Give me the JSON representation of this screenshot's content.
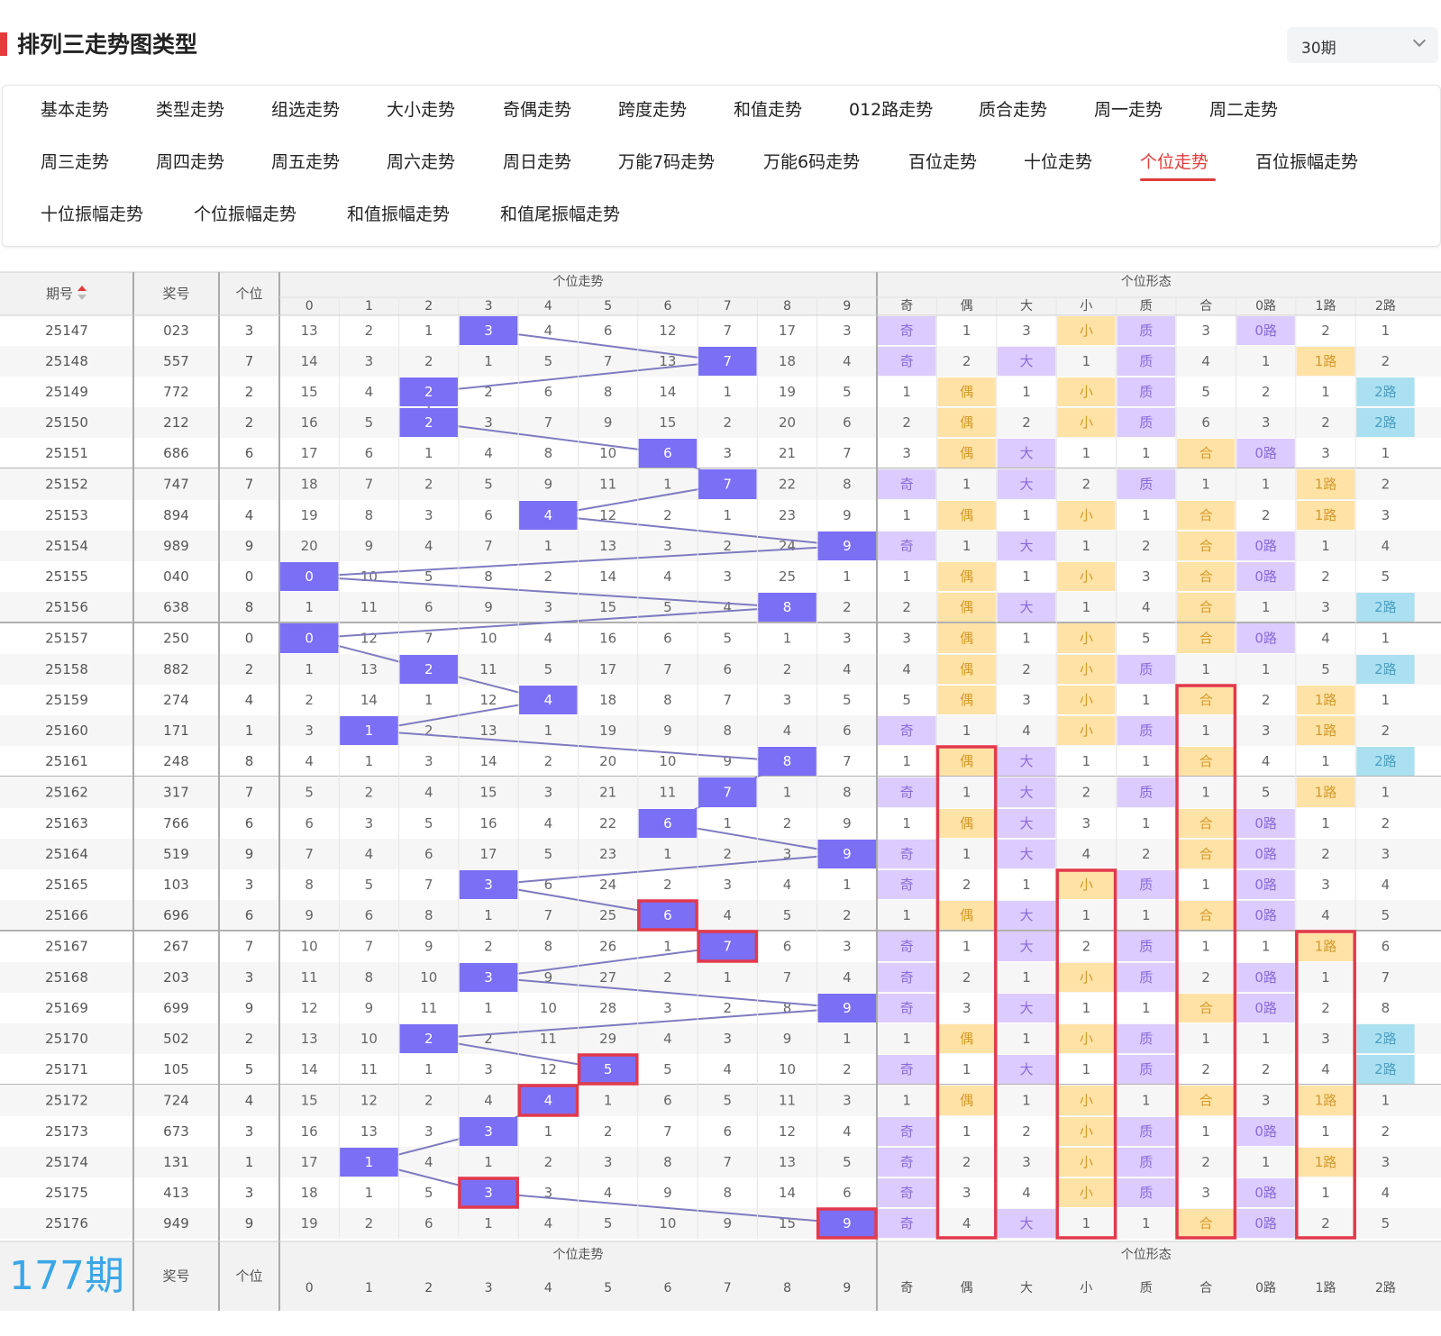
{
  "page": {
    "title": "排列三走势图类型",
    "period_select": "30期"
  },
  "tabs": [
    {
      "label": "基本走势"
    },
    {
      "label": "类型走势"
    },
    {
      "label": "组选走势"
    },
    {
      "label": "大小走势"
    },
    {
      "label": "奇偶走势"
    },
    {
      "label": "跨度走势"
    },
    {
      "label": "和值走势"
    },
    {
      "label": "012路走势"
    },
    {
      "label": "质合走势"
    },
    {
      "label": "周一走势"
    },
    {
      "label": "周二走势"
    },
    {
      "label": "周三走势"
    },
    {
      "label": "周四走势"
    },
    {
      "label": "周五走势"
    },
    {
      "label": "周六走势"
    },
    {
      "label": "周日走势"
    },
    {
      "label": "万能7码走势"
    },
    {
      "label": "万能6码走势"
    },
    {
      "label": "百位走势"
    },
    {
      "label": "十位走势"
    },
    {
      "label": "个位走势"
    },
    {
      "label": "百位振幅走势"
    },
    {
      "label": "十位振幅走势"
    },
    {
      "label": "个位振幅走势"
    },
    {
      "label": "和值振幅走势"
    },
    {
      "label": "和值尾振幅走势"
    }
  ],
  "active_tab": "个位走势",
  "table": {
    "head": {
      "issue": "期号",
      "sort_icon": "sort-arrows-icon",
      "draw": "奖号",
      "units": "个位",
      "group_trend": "个位走势",
      "group_form": "个位形态",
      "digits": [
        "0",
        "1",
        "2",
        "3",
        "4",
        "5",
        "6",
        "7",
        "8",
        "9"
      ],
      "forms": [
        "奇",
        "偶",
        "大",
        "小",
        "质",
        "合",
        "0路",
        "1路",
        "2路"
      ]
    },
    "footer": {
      "count": "177期",
      "draw": "奖号",
      "units": "个位"
    },
    "rows": [
      {
        "issue": "25147",
        "draw": "023",
        "units": "3",
        "trend": [
          "13",
          "2",
          "1",
          "3",
          "4",
          "6",
          "12",
          "7",
          "17",
          "3"
        ],
        "form": [
          "奇",
          "1",
          "3",
          "小",
          "质",
          "3",
          "0路",
          "2",
          "1"
        ]
      },
      {
        "issue": "25148",
        "draw": "557",
        "units": "7",
        "trend": [
          "14",
          "3",
          "2",
          "1",
          "5",
          "7",
          "13",
          "7",
          "18",
          "4"
        ],
        "form": [
          "奇",
          "2",
          "大",
          "1",
          "质",
          "4",
          "1",
          "1路",
          "2"
        ]
      },
      {
        "issue": "25149",
        "draw": "772",
        "units": "2",
        "trend": [
          "15",
          "4",
          "2",
          "2",
          "6",
          "8",
          "14",
          "1",
          "19",
          "5"
        ],
        "form": [
          "1",
          "偶",
          "1",
          "小",
          "质",
          "5",
          "2",
          "1",
          "2路"
        ]
      },
      {
        "issue": "25150",
        "draw": "212",
        "units": "2",
        "trend": [
          "16",
          "5",
          "2",
          "3",
          "7",
          "9",
          "15",
          "2",
          "20",
          "6"
        ],
        "form": [
          "2",
          "偶",
          "2",
          "小",
          "质",
          "6",
          "3",
          "2",
          "2路"
        ]
      },
      {
        "issue": "25151",
        "draw": "686",
        "units": "6",
        "trend": [
          "17",
          "6",
          "1",
          "4",
          "8",
          "10",
          "6",
          "3",
          "21",
          "7"
        ],
        "form": [
          "3",
          "偶",
          "大",
          "1",
          "1",
          "合",
          "0路",
          "3",
          "1"
        ]
      },
      {
        "issue": "25152",
        "draw": "747",
        "units": "7",
        "trend": [
          "18",
          "7",
          "2",
          "5",
          "9",
          "11",
          "1",
          "7",
          "22",
          "8"
        ],
        "form": [
          "奇",
          "1",
          "大",
          "2",
          "质",
          "1",
          "1",
          "1路",
          "2"
        ]
      },
      {
        "issue": "25153",
        "draw": "894",
        "units": "4",
        "trend": [
          "19",
          "8",
          "3",
          "6",
          "4",
          "12",
          "2",
          "1",
          "23",
          "9"
        ],
        "form": [
          "1",
          "偶",
          "1",
          "小",
          "1",
          "合",
          "2",
          "1路",
          "3"
        ]
      },
      {
        "issue": "25154",
        "draw": "989",
        "units": "9",
        "trend": [
          "20",
          "9",
          "4",
          "7",
          "1",
          "13",
          "3",
          "2",
          "24",
          "9"
        ],
        "form": [
          "奇",
          "1",
          "大",
          "1",
          "2",
          "合",
          "0路",
          "1",
          "4"
        ]
      },
      {
        "issue": "25155",
        "draw": "040",
        "units": "0",
        "trend": [
          "0",
          "10",
          "5",
          "8",
          "2",
          "14",
          "4",
          "3",
          "25",
          "1"
        ],
        "form": [
          "1",
          "偶",
          "1",
          "小",
          "3",
          "合",
          "0路",
          "2",
          "5"
        ]
      },
      {
        "issue": "25156",
        "draw": "638",
        "units": "8",
        "trend": [
          "1",
          "11",
          "6",
          "9",
          "3",
          "15",
          "5",
          "4",
          "8",
          "2"
        ],
        "form": [
          "2",
          "偶",
          "大",
          "1",
          "4",
          "合",
          "1",
          "3",
          "2路"
        ]
      },
      {
        "issue": "25157",
        "draw": "250",
        "units": "0",
        "trend": [
          "0",
          "12",
          "7",
          "10",
          "4",
          "16",
          "6",
          "5",
          "1",
          "3"
        ],
        "form": [
          "3",
          "偶",
          "1",
          "小",
          "5",
          "合",
          "0路",
          "4",
          "1"
        ]
      },
      {
        "issue": "25158",
        "draw": "882",
        "units": "2",
        "trend": [
          "1",
          "13",
          "2",
          "11",
          "5",
          "17",
          "7",
          "6",
          "2",
          "4"
        ],
        "form": [
          "4",
          "偶",
          "2",
          "小",
          "质",
          "1",
          "1",
          "5",
          "2路"
        ]
      },
      {
        "issue": "25159",
        "draw": "274",
        "units": "4",
        "trend": [
          "2",
          "14",
          "1",
          "12",
          "4",
          "18",
          "8",
          "7",
          "3",
          "5"
        ],
        "form": [
          "5",
          "偶",
          "3",
          "小",
          "1",
          "合",
          "2",
          "1路",
          "1"
        ]
      },
      {
        "issue": "25160",
        "draw": "171",
        "units": "1",
        "trend": [
          "3",
          "1",
          "2",
          "13",
          "1",
          "19",
          "9",
          "8",
          "4",
          "6"
        ],
        "form": [
          "奇",
          "1",
          "4",
          "小",
          "质",
          "1",
          "3",
          "1路",
          "2"
        ]
      },
      {
        "issue": "25161",
        "draw": "248",
        "units": "8",
        "trend": [
          "4",
          "1",
          "3",
          "14",
          "2",
          "20",
          "10",
          "9",
          "8",
          "7"
        ],
        "form": [
          "1",
          "偶",
          "大",
          "1",
          "1",
          "合",
          "4",
          "1",
          "2路"
        ]
      },
      {
        "issue": "25162",
        "draw": "317",
        "units": "7",
        "trend": [
          "5",
          "2",
          "4",
          "15",
          "3",
          "21",
          "11",
          "7",
          "1",
          "8"
        ],
        "form": [
          "奇",
          "1",
          "大",
          "2",
          "质",
          "1",
          "5",
          "1路",
          "1"
        ]
      },
      {
        "issue": "25163",
        "draw": "766",
        "units": "6",
        "trend": [
          "6",
          "3",
          "5",
          "16",
          "4",
          "22",
          "6",
          "1",
          "2",
          "9"
        ],
        "form": [
          "1",
          "偶",
          "大",
          "3",
          "1",
          "合",
          "0路",
          "1",
          "2"
        ]
      },
      {
        "issue": "25164",
        "draw": "519",
        "units": "9",
        "trend": [
          "7",
          "4",
          "6",
          "17",
          "5",
          "23",
          "1",
          "2",
          "3",
          "9"
        ],
        "form": [
          "奇",
          "1",
          "大",
          "4",
          "2",
          "合",
          "0路",
          "2",
          "3"
        ]
      },
      {
        "issue": "25165",
        "draw": "103",
        "units": "3",
        "trend": [
          "8",
          "5",
          "7",
          "3",
          "6",
          "24",
          "2",
          "3",
          "4",
          "1"
        ],
        "form": [
          "奇",
          "2",
          "1",
          "小",
          "质",
          "1",
          "0路",
          "3",
          "4"
        ]
      },
      {
        "issue": "25166",
        "draw": "696",
        "units": "6",
        "trend": [
          "9",
          "6",
          "8",
          "1",
          "7",
          "25",
          "6",
          "4",
          "5",
          "2"
        ],
        "form": [
          "1",
          "偶",
          "大",
          "1",
          "1",
          "合",
          "0路",
          "4",
          "5"
        ]
      },
      {
        "issue": "25167",
        "draw": "267",
        "units": "7",
        "trend": [
          "10",
          "7",
          "9",
          "2",
          "8",
          "26",
          "1",
          "7",
          "6",
          "3"
        ],
        "form": [
          "奇",
          "1",
          "大",
          "2",
          "质",
          "1",
          "1",
          "1路",
          "6"
        ]
      },
      {
        "issue": "25168",
        "draw": "203",
        "units": "3",
        "trend": [
          "11",
          "8",
          "10",
          "3",
          "9",
          "27",
          "2",
          "1",
          "7",
          "4"
        ],
        "form": [
          "奇",
          "2",
          "1",
          "小",
          "质",
          "2",
          "0路",
          "1",
          "7"
        ]
      },
      {
        "issue": "25169",
        "draw": "699",
        "units": "9",
        "trend": [
          "12",
          "9",
          "11",
          "1",
          "10",
          "28",
          "3",
          "2",
          "8",
          "9"
        ],
        "form": [
          "奇",
          "3",
          "大",
          "1",
          "1",
          "合",
          "0路",
          "2",
          "8"
        ]
      },
      {
        "issue": "25170",
        "draw": "502",
        "units": "2",
        "trend": [
          "13",
          "10",
          "2",
          "2",
          "11",
          "29",
          "4",
          "3",
          "9",
          "1"
        ],
        "form": [
          "1",
          "偶",
          "1",
          "小",
          "质",
          "1",
          "1",
          "3",
          "2路"
        ]
      },
      {
        "issue": "25171",
        "draw": "105",
        "units": "5",
        "trend": [
          "14",
          "11",
          "1",
          "3",
          "12",
          "5",
          "5",
          "4",
          "10",
          "2"
        ],
        "form": [
          "奇",
          "1",
          "大",
          "1",
          "质",
          "2",
          "2",
          "4",
          "2路"
        ]
      },
      {
        "issue": "25172",
        "draw": "724",
        "units": "4",
        "trend": [
          "15",
          "12",
          "2",
          "4",
          "4",
          "1",
          "6",
          "5",
          "11",
          "3"
        ],
        "form": [
          "1",
          "偶",
          "1",
          "小",
          "1",
          "合",
          "3",
          "1路",
          "1"
        ]
      },
      {
        "issue": "25173",
        "draw": "673",
        "units": "3",
        "trend": [
          "16",
          "13",
          "3",
          "3",
          "1",
          "2",
          "7",
          "6",
          "12",
          "4"
        ],
        "form": [
          "奇",
          "1",
          "2",
          "小",
          "质",
          "1",
          "0路",
          "1",
          "2"
        ]
      },
      {
        "issue": "25174",
        "draw": "131",
        "units": "1",
        "trend": [
          "17",
          "1",
          "4",
          "1",
          "2",
          "3",
          "8",
          "7",
          "13",
          "5"
        ],
        "form": [
          "奇",
          "2",
          "3",
          "小",
          "质",
          "2",
          "1",
          "1路",
          "3"
        ]
      },
      {
        "issue": "25175",
        "draw": "413",
        "units": "3",
        "trend": [
          "18",
          "1",
          "5",
          "3",
          "3",
          "4",
          "9",
          "8",
          "14",
          "6"
        ],
        "form": [
          "奇",
          "3",
          "4",
          "小",
          "质",
          "3",
          "0路",
          "1",
          "4"
        ]
      },
      {
        "issue": "25176",
        "draw": "949",
        "units": "9",
        "trend": [
          "19",
          "2",
          "6",
          "1",
          "4",
          "5",
          "10",
          "9",
          "15",
          "9"
        ],
        "form": [
          "奇",
          "4",
          "大",
          "1",
          "1",
          "合",
          "0路",
          "2",
          "5"
        ]
      }
    ]
  },
  "colors": {
    "accent": "#e23b3b",
    "hit_blue": "#7b6ff5",
    "odd_purple": "#dccbff",
    "even_orange": "#ffe2a6",
    "route2_blue": "#abe0f0",
    "line": "#7f7bc0",
    "highlight_box": "#e2394c"
  }
}
